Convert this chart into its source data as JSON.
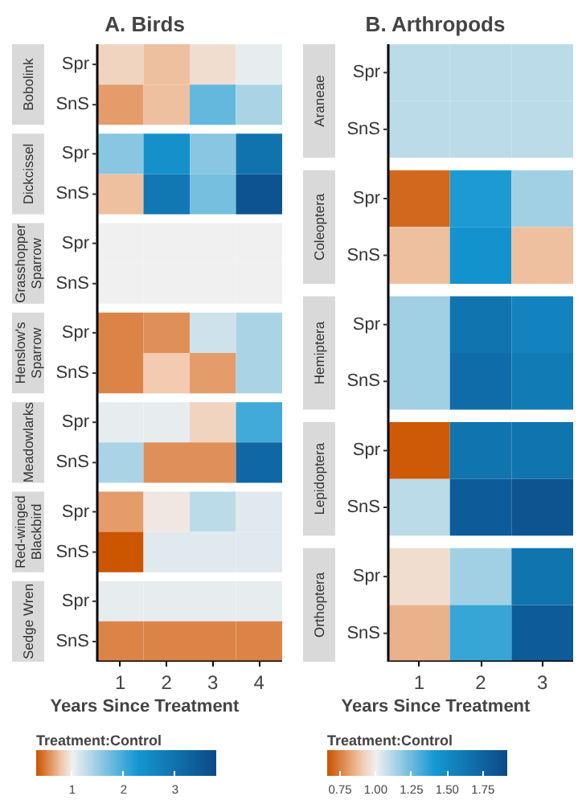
{
  "chart_data": [
    {
      "type": "heatmap",
      "title": "A. Birds",
      "xlabel": "Years Since Treatment",
      "categories": [
        "1",
        "2",
        "3",
        "4"
      ],
      "y_categories": [
        "Spr",
        "SnS",
        "Spr",
        "SnS",
        "Spr",
        "SnS",
        "Spr",
        "SnS",
        "Spr",
        "SnS",
        "Spr",
        "SnS",
        "Spr",
        "SnS"
      ],
      "annotations": [
        "Bobolink",
        "Dickcissel",
        "Grasshopper Sparrow",
        "Henslow's Sparrow",
        "Meadowlarks",
        "Red-winged Blackbird",
        "Sedge Wren"
      ],
      "cells": [
        [
          0.85,
          0.75,
          0.9,
          1.05
        ],
        [
          0.6,
          0.75,
          1.8,
          1.4
        ],
        [
          1.6,
          2.4,
          1.6,
          3.0
        ],
        [
          0.75,
          2.9,
          1.7,
          3.6
        ],
        [
          1.0,
          1.0,
          1.0,
          1.0
        ],
        [
          1.0,
          1.0,
          1.0,
          1.0
        ],
        [
          0.5,
          0.55,
          1.2,
          1.4
        ],
        [
          0.5,
          0.8,
          0.6,
          1.4
        ],
        [
          1.05,
          1.05,
          0.85,
          2.0
        ],
        [
          1.4,
          0.55,
          0.55,
          3.2
        ],
        [
          0.6,
          0.95,
          1.3,
          1.1
        ],
        [
          0.3,
          1.1,
          1.1,
          1.1
        ],
        [
          1.05,
          1.05,
          1.05,
          1.05
        ],
        [
          0.5,
          0.5,
          0.5,
          0.5
        ]
      ],
      "clim": [
        0.3,
        3.8
      ],
      "cticks": [
        1,
        2,
        3
      ],
      "clabel": "Treatment:Control"
    },
    {
      "type": "heatmap",
      "title": "B. Arthropods",
      "xlabel": "Years Since Treatment",
      "categories": [
        "1",
        "2",
        "3"
      ],
      "y_categories": [
        "Spr",
        "SnS",
        "Spr",
        "SnS",
        "Spr",
        "SnS",
        "Spr",
        "SnS",
        "Spr",
        "SnS"
      ],
      "annotations": [
        "Araneae",
        "Coleoptera",
        "Hemiptera",
        "Lepidoptera",
        "Orthoptera"
      ],
      "cells": [
        [
          1.1,
          1.1,
          1.1
        ],
        [
          1.1,
          1.1,
          1.1
        ],
        [
          0.7,
          1.4,
          1.15
        ],
        [
          0.88,
          1.45,
          0.88
        ],
        [
          1.15,
          1.65,
          1.55
        ],
        [
          1.15,
          1.7,
          1.6
        ],
        [
          0.67,
          1.65,
          1.65
        ],
        [
          1.1,
          1.8,
          1.85
        ],
        [
          0.95,
          1.15,
          1.65
        ],
        [
          0.85,
          1.35,
          1.8
        ]
      ],
      "clim": [
        0.66,
        1.92
      ],
      "cticks": [
        0.75,
        {
          "value": 1.0,
          "label": "1.00"
        },
        1.25,
        {
          "value": 1.5,
          "label": "1.50"
        },
        1.75
      ],
      "clabel": "Treatment:Control"
    }
  ]
}
